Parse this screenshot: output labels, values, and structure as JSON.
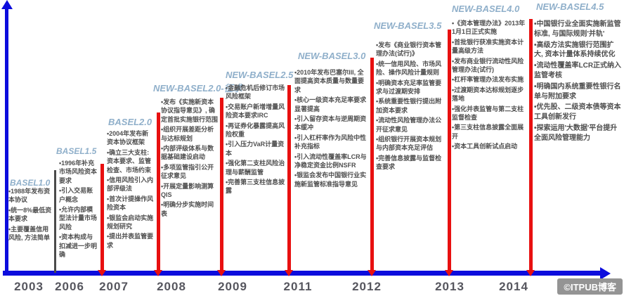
{
  "colors": {
    "axis_blue": "#0c0cdd",
    "milestone_red": "#e81010",
    "header_blue": "#8fafca",
    "body_text_gray": "#4f4f4f",
    "year_gray": "#56565e",
    "separator_gray": "#4a4a4a",
    "watermark_bg": "#949494"
  },
  "timeline": {
    "years": [
      "2003",
      "2006",
      "2007",
      "2008",
      "2009",
      "2011",
      "2012",
      "2013",
      "2014"
    ]
  },
  "columns": [
    {
      "header": "BASEL1.0",
      "bullets": [
        "•1988年发布资本协议",
        "•统一8%最低资本要求",
        "•主要覆盖信用风险, 方法简单"
      ]
    },
    {
      "header": "BASEL1.5",
      "bullets": [
        "•1996年补充市场风险资本要求",
        "•引入交易账户概念",
        "•允许内部模型法计量市场风险",
        "•资本构成与扣减进一步明确"
      ]
    },
    {
      "header": "BASEL2.0",
      "bullets": [
        "•2004年发布新资本协议框架",
        "•确立三大支柱: 资本要求、监管检查、市场约束",
        "•信用风险引入内部评级法",
        "•首次计提操作风险资本",
        "•银监会启动实施规划研究",
        "•提出并表监管要求"
      ]
    },
    {
      "header": "NEW-BASEL2.0-征求",
      "bullets": [
        "•发布《实施新资本协议指导意见》, 确定首批实施银行范围",
        "•组织开展差距分析与达标规划",
        "•内部评级体系与数据基础建设启动",
        "•多项监管指引公开征求意见",
        "•开展定量影响测算QIS",
        "•明确分步实施时间表"
      ]
    },
    {
      "header": "NEW-BASEL2.5",
      "bullets": [
        "•金融危机后修订市场风险框架",
        "•交易账户新增增量风险资本要求IRC",
        "•再证券化暴露提高风险权重",
        "•引入压力VaR计量资本",
        "•强化第二支柱风险治理与薪酬监管",
        "•完善第三支柱信息披露"
      ]
    },
    {
      "header": "NEW-BASEL3.0",
      "bullets": [
        "•2010年发布巴塞尔III, 全面提高资本质量与数量要求",
        "•核心一级资本充足率要求显著提高",
        "•引入留存资本与逆周期资本缓冲",
        "•引入杠杆率作为风险中性补充指标",
        "•引入流动性覆盖率LCR与净稳定资金比例NSFR",
        "•银监会发布中国银行业实施新监管标准指导意见"
      ]
    },
    {
      "header": "NEW-BASEL3.5",
      "bullets": [
        "•发布《商业银行资本管理办法(试行)》",
        "•统一信用风险、市场风险、操作风险计量规则",
        "•明确资本充足率监管要求与过渡期安排",
        "•系统重要性银行提出附加资本要求",
        "•流动性风险管理办法公开征求意见",
        "•组织银行开展资本规划与内部资本充足评估",
        "•完善信息披露与监督检查要求"
      ]
    },
    {
      "header": "NEW-BASEL4.0",
      "bullets": [
        "•《资本管理办法》2013年1月1日正式实施",
        "•首批银行获准实施资本计量高级方法",
        "•发布商业银行流动性风险管理办法(试行)",
        "•杠杆率管理办法发布实施",
        "•过渡期资本达标规划逐步落地",
        "•强化并表监管与第二支柱监督检查",
        "•第三支柱信息披露全面展开",
        "•资本工具创新试点启动"
      ]
    },
    {
      "header": "NEW-BASEL4.5",
      "bullets": [
        "•中国银行业全面实施新监管标准, 与国际规则'并轨'",
        "•高级方法实施银行范围扩大, 资本计量体系持续优化",
        "•流动性覆盖率LCR正式纳入监管考核",
        "•明确国内系统重要性银行名单与附加要求",
        "•优先股、二级资本债等资本工具创新发行",
        "•探索运用'大数据'平台提升全面风险管理能力"
      ]
    }
  ],
  "watermark": "©ITPUB博客"
}
